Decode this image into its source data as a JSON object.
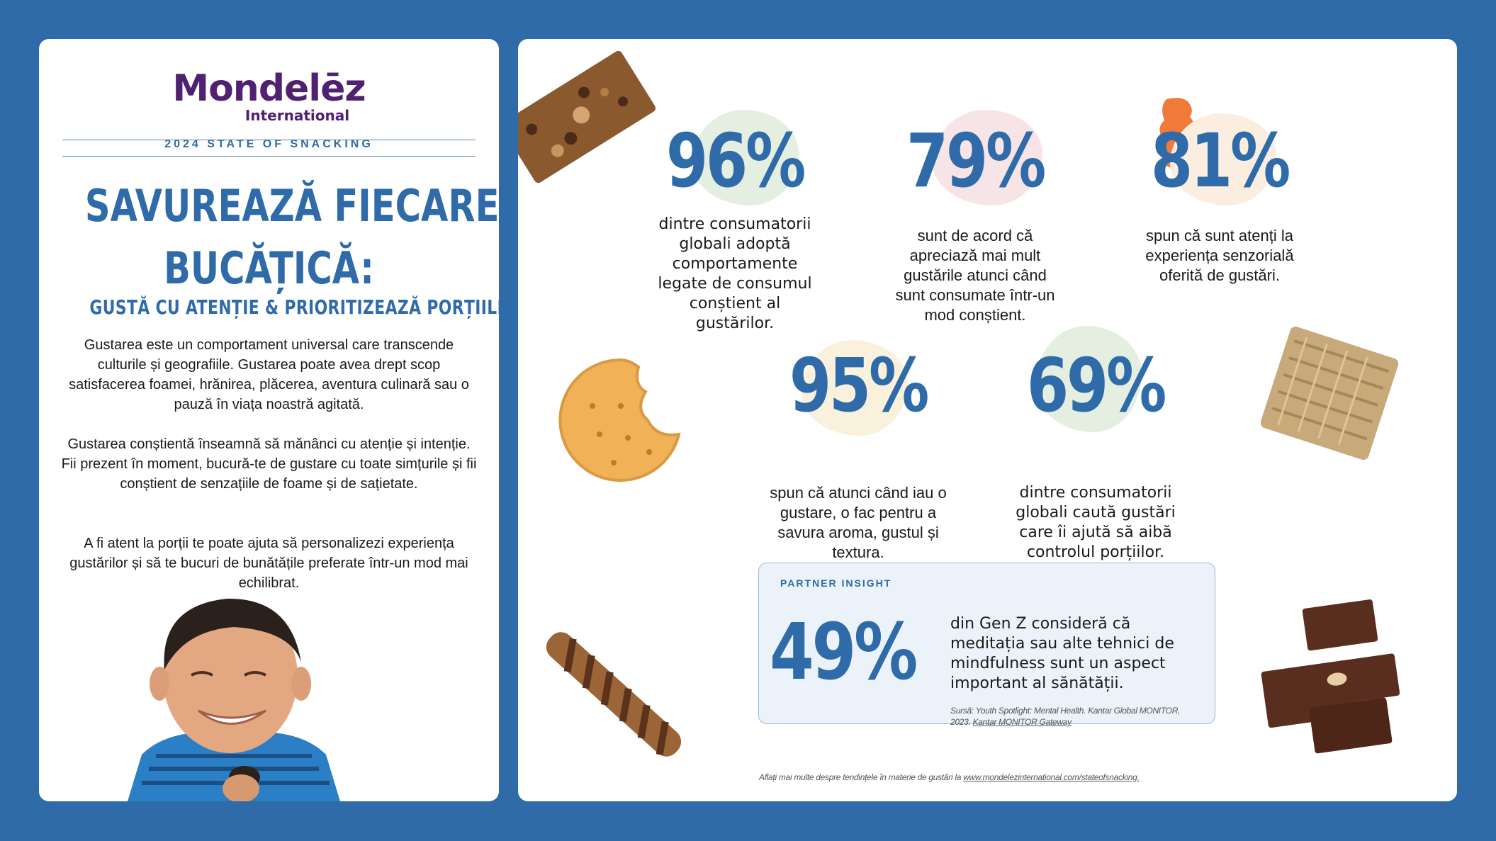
{
  "brand": {
    "logo_main": "Mondelēz",
    "logo_sub": "International",
    "kicker": "2024 STATE OF SNACKING"
  },
  "headline": {
    "line1": "SAVUREAZĂ FIECARE",
    "line2": "BUCĂȚICĂ:",
    "subhead": "GUSTĂ CU ATENȚIE & PRIORITIZEAZĂ PORȚIILE"
  },
  "body": {
    "p1": "Gustarea este un comportament universal care transcende culturile și geografiile. Gustarea poate avea drept scop satisfacerea foamei, hrănirea, plăcerea, aventura culinară sau o pauză în viața noastră agitată.",
    "p2": "Gustarea conștientă înseamnă să mănânci cu atenție și intenție. Fii prezent în moment, bucură-te de gustare cu toate simțurile și fii conștient de senzațiile de foame și de sațietate.",
    "p3": "A fi atent la porții te poate ajuta să personalizezi experiența gustărilor și să te bucuri de bunătățile preferate într-un mod mai echilibrat."
  },
  "stats": [
    {
      "value": "96%",
      "text": "dintre consumatorii globali adoptă comportamente legate de consumul conștient al gustărilor.",
      "blob_color": "#e4efe1"
    },
    {
      "value": "79%",
      "text": "sunt de acord că apreciază mai mult gustările atunci când sunt consumate într-un mod conștient.",
      "blob_color": "#f7e4e6"
    },
    {
      "value": "81%",
      "text": "spun că sunt atenți la experiența senzorială oferită de gustări.",
      "blob_color": "#fbeee0"
    },
    {
      "value": "95%",
      "text": "spun că atunci când iau o gustare, o fac pentru a savura aroma, gustul și textura.",
      "blob_color": "#faf1dc"
    },
    {
      "value": "69%",
      "text": "dintre consumatorii globali caută gustări care îi ajută să aibă controlul porțiilor.",
      "blob_color": "#e4efe1"
    }
  ],
  "partner": {
    "label": "PARTNER INSIGHT",
    "value": "49%",
    "text": "din Gen Z consideră că meditația sau alte tehnici de mindfulness sunt un aspect important al sănătății.",
    "source_prefix": "Sursă: Youth Spotlight: Mental Health. Kantar Global MONITOR, 2023. ",
    "source_link": "Kantar MONITOR Gateway"
  },
  "footer": {
    "prefix": "Aflați mai multe despre tendințele în materie de gustări la ",
    "link": "www.mondelezinternational.com/stateofsnacking."
  },
  "colors": {
    "background": "#2e6ba8",
    "accent_blue": "#2e6ba8",
    "logo_purple": "#4f2170"
  }
}
